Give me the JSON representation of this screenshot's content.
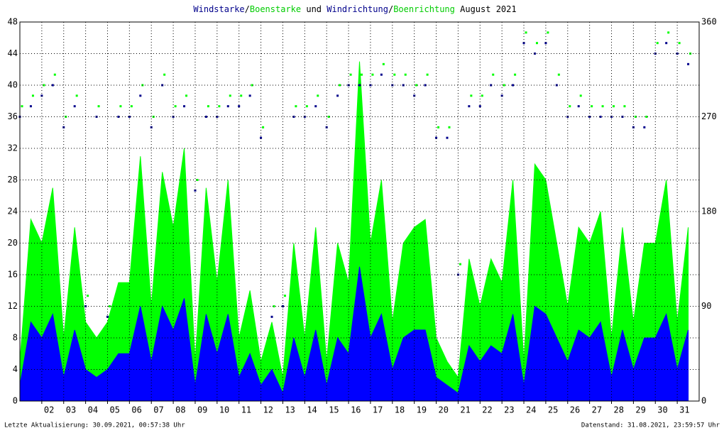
{
  "chart_data": {
    "type": "area",
    "title_parts": [
      {
        "text": "Windstarke",
        "color": "#00008b"
      },
      {
        "text": "/",
        "color": "#000000"
      },
      {
        "text": "Boenstarke",
        "color": "#00cc00"
      },
      {
        "text": " und ",
        "color": "#000000"
      },
      {
        "text": "Windrichtung",
        "color": "#00008b"
      },
      {
        "text": "/",
        "color": "#000000"
      },
      {
        "text": "Boenrichtung",
        "color": "#00cc00"
      },
      {
        "text": " August 2021",
        "color": "#000000"
      }
    ],
    "footer_left": "Letzte Aktualisierung: 30.09.2021, 00:57:38 Uhr",
    "footer_right": "Datenstand: 31.08.2021, 23:59:57 Uhr",
    "x": [
      1,
      1.5,
      2,
      2.5,
      3,
      3.5,
      4,
      4.5,
      5,
      5.5,
      6,
      6.5,
      7,
      7.5,
      8,
      8.5,
      9,
      9.5,
      10,
      10.5,
      11,
      11.5,
      12,
      12.5,
      13,
      13.5,
      14,
      14.5,
      15,
      15.5,
      16,
      16.5,
      17,
      17.5,
      18,
      18.5,
      19,
      19.5,
      20,
      20.5,
      21,
      21.5,
      22,
      22.5,
      23,
      23.5,
      24,
      24.5,
      25,
      25.5,
      26,
      26.5,
      27,
      27.5,
      28,
      28.5,
      29,
      29.5,
      30,
      30.5,
      31,
      31.5
    ],
    "series": [
      {
        "name": "Boenstarke",
        "color": "#00ff00",
        "values": [
          5,
          23,
          20,
          27,
          8,
          22,
          10,
          8,
          10,
          15,
          15,
          31,
          12,
          29,
          22,
          32,
          5,
          27,
          15,
          28,
          8,
          14,
          5,
          10,
          3,
          20,
          8,
          22,
          5,
          20,
          15,
          43,
          20,
          28,
          10,
          20,
          22,
          23,
          8,
          5,
          3,
          18,
          12,
          18,
          15,
          28,
          5,
          30,
          28,
          20,
          12,
          22,
          20,
          24,
          8,
          22,
          10,
          20,
          20,
          28,
          10,
          22
        ]
      },
      {
        "name": "Windstarke",
        "color": "#0000ff",
        "values": [
          2,
          10,
          8,
          11,
          3,
          9,
          4,
          3,
          4,
          6,
          6,
          12,
          5,
          12,
          9,
          13,
          2,
          11,
          6,
          11,
          3,
          6,
          2,
          4,
          1,
          8,
          3,
          9,
          2,
          8,
          6,
          17,
          8,
          11,
          4,
          8,
          9,
          9,
          3,
          2,
          1,
          7,
          5,
          7,
          6,
          11,
          2,
          12,
          11,
          8,
          5,
          9,
          8,
          10,
          3,
          9,
          4,
          8,
          8,
          11,
          4,
          9
        ]
      },
      {
        "name": "Windrichtung",
        "color": "#00008b",
        "axis": "y2",
        "values": [
          270,
          280,
          290,
          300,
          260,
          280,
          90,
          270,
          80,
          270,
          270,
          290,
          260,
          300,
          270,
          280,
          200,
          270,
          270,
          280,
          280,
          290,
          250,
          80,
          90,
          270,
          270,
          280,
          260,
          290,
          300,
          300,
          300,
          310,
          300,
          300,
          290,
          300,
          250,
          250,
          120,
          280,
          280,
          300,
          290,
          300,
          340,
          330,
          340,
          300,
          270,
          280,
          270,
          270,
          270,
          270,
          260,
          260,
          330,
          340,
          330,
          320
        ]
      },
      {
        "name": "Boenrichtung",
        "color": "#00ff00",
        "axis": "y2",
        "values": [
          280,
          290,
          300,
          310,
          270,
          290,
          100,
          280,
          90,
          280,
          280,
          300,
          270,
          310,
          280,
          290,
          210,
          280,
          280,
          290,
          290,
          300,
          260,
          90,
          100,
          280,
          280,
          290,
          270,
          300,
          310,
          310,
          310,
          320,
          310,
          310,
          300,
          310,
          260,
          260,
          130,
          290,
          290,
          310,
          300,
          310,
          350,
          340,
          350,
          310,
          280,
          290,
          280,
          280,
          280,
          280,
          270,
          270,
          340,
          350,
          340,
          330
        ]
      }
    ],
    "xlim": [
      1,
      32
    ],
    "xticks": [
      {
        "value": 2,
        "label": "02"
      },
      {
        "value": 3,
        "label": "03"
      },
      {
        "value": 4,
        "label": "04"
      },
      {
        "value": 5,
        "label": "05"
      },
      {
        "value": 6,
        "label": "06"
      },
      {
        "value": 7,
        "label": "07"
      },
      {
        "value": 8,
        "label": "08"
      },
      {
        "value": 9,
        "label": "09"
      },
      10,
      11,
      12,
      13,
      14,
      15,
      16,
      17,
      18,
      19,
      20,
      21,
      22,
      23,
      24,
      25,
      26,
      27,
      28,
      29,
      30,
      31
    ],
    "ylim": [
      0,
      48
    ],
    "yticks": [
      0,
      4,
      8,
      12,
      16,
      20,
      24,
      28,
      32,
      36,
      40,
      44,
      48
    ],
    "y2lim": [
      0,
      360
    ],
    "y2ticks": [
      0,
      90,
      180,
      270,
      360
    ],
    "grid": true
  }
}
